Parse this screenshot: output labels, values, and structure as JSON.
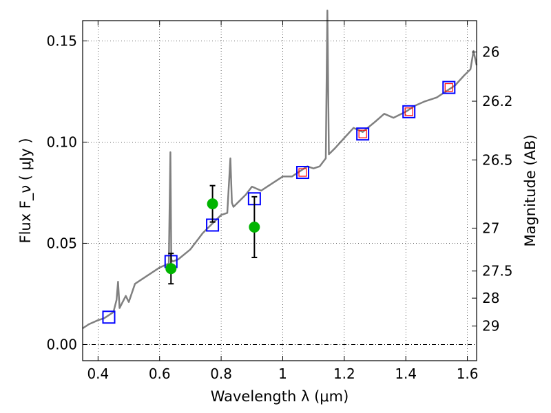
{
  "chart_data": {
    "type": "line",
    "xlabel": "Wavelength  λ (μm)",
    "ylabel": "Flux  F_ν ( μJy )",
    "ylabel_right": "Magnitude (AB)",
    "xlim": [
      0.35,
      1.63
    ],
    "ylim": [
      -0.008,
      0.16
    ],
    "x_ticks": [
      0.4,
      0.6,
      0.8,
      1.0,
      1.2,
      1.4,
      1.6
    ],
    "x_tick_labels": [
      "0.4",
      "0.6",
      "0.8",
      "1",
      "1.2",
      "1.4",
      "1.6"
    ],
    "y_ticks": [
      0.0,
      0.05,
      0.1,
      0.15
    ],
    "y_tick_labels": [
      "0.00",
      "0.05",
      "0.10",
      "0.15"
    ],
    "right_ticks": [
      {
        "label": "26",
        "flux": 0.1445
      },
      {
        "label": "26.2",
        "flux": 0.1202
      },
      {
        "label": "26.5",
        "flux": 0.0912
      },
      {
        "label": "27",
        "flux": 0.0575
      },
      {
        "label": "27.5",
        "flux": 0.0363
      },
      {
        "label": "28",
        "flux": 0.0229
      },
      {
        "label": "29",
        "flux": 0.0091
      }
    ],
    "grid": true,
    "grid_style": "dotted",
    "series": [
      {
        "kind": "template-spectrum",
        "color": "#808080",
        "x": [
          0.35,
          0.37,
          0.4,
          0.42,
          0.45,
          0.46,
          0.465,
          0.47,
          0.49,
          0.5,
          0.52,
          0.55,
          0.57,
          0.6,
          0.63,
          0.635,
          0.638,
          0.642,
          0.66,
          0.7,
          0.74,
          0.76,
          0.8,
          0.82,
          0.83,
          0.835,
          0.84,
          0.86,
          0.88,
          0.9,
          0.93,
          0.95,
          0.98,
          1.0,
          1.03,
          1.06,
          1.08,
          1.1,
          1.12,
          1.14,
          1.145,
          1.15,
          1.17,
          1.2,
          1.23,
          1.26,
          1.3,
          1.33,
          1.36,
          1.4,
          1.43,
          1.46,
          1.5,
          1.53,
          1.56,
          1.59,
          1.61,
          1.62,
          1.63
        ],
        "y": [
          0.008,
          0.01,
          0.012,
          0.013,
          0.016,
          0.022,
          0.031,
          0.018,
          0.024,
          0.021,
          0.03,
          0.033,
          0.035,
          0.038,
          0.04,
          0.095,
          0.042,
          0.041,
          0.042,
          0.047,
          0.055,
          0.058,
          0.064,
          0.065,
          0.092,
          0.07,
          0.068,
          0.071,
          0.074,
          0.078,
          0.076,
          0.078,
          0.081,
          0.083,
          0.083,
          0.086,
          0.088,
          0.087,
          0.088,
          0.092,
          0.165,
          0.094,
          0.097,
          0.102,
          0.107,
          0.105,
          0.11,
          0.114,
          0.112,
          0.115,
          0.118,
          0.12,
          0.122,
          0.125,
          0.128,
          0.133,
          0.136,
          0.145,
          0.138
        ]
      },
      {
        "kind": "model-blue-squares",
        "color": "#0000ff",
        "x": [
          0.435,
          0.637,
          0.772,
          0.908,
          1.065,
          1.26,
          1.41,
          1.54
        ],
        "y": [
          0.0135,
          0.041,
          0.059,
          0.072,
          0.085,
          0.104,
          0.115,
          0.127
        ]
      },
      {
        "kind": "model-red-squares",
        "color": "#ff0000",
        "x": [
          1.065,
          1.26,
          1.41,
          1.54
        ],
        "y": [
          0.085,
          0.104,
          0.115,
          0.127
        ]
      },
      {
        "kind": "observed-green-points",
        "color": "#00b400",
        "x": [
          0.637,
          0.772,
          0.908
        ],
        "y": [
          0.0375,
          0.0695,
          0.058
        ],
        "yerr": [
          0.0075,
          0.009,
          0.015
        ]
      }
    ]
  }
}
